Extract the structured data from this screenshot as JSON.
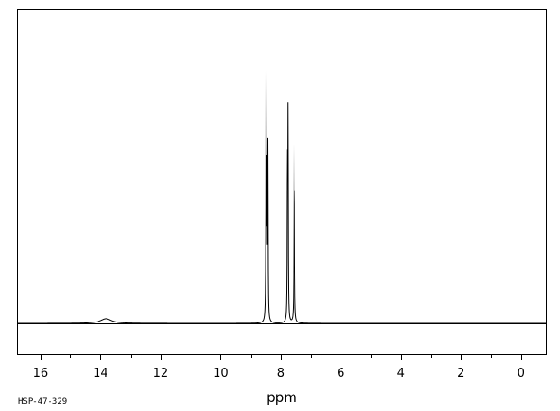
{
  "chart_data": {
    "type": "line",
    "xlabel": "ppm",
    "ylabel": "",
    "xlim": [
      16.75,
      -0.85
    ],
    "x_reversed": true,
    "ylim": [
      -0.18,
      1.0
    ],
    "grid": false,
    "x_ticks": [
      16,
      14,
      12,
      10,
      8,
      6,
      4,
      2,
      0
    ],
    "x_minor_step": 1,
    "baseline": 0,
    "sample_code": "HSP-47-329",
    "peaks": [
      {
        "ppm": 13.82,
        "height": 0.016,
        "width": 0.22
      },
      {
        "ppm": 8.49,
        "height": 0.87,
        "width": 0.008
      },
      {
        "ppm": 8.46,
        "height": 0.5,
        "width": 0.008
      },
      {
        "ppm": 8.43,
        "height": 0.61,
        "width": 0.008
      },
      {
        "ppm": 7.78,
        "height": 0.54,
        "width": 0.008
      },
      {
        "ppm": 7.76,
        "height": 0.72,
        "width": 0.008
      },
      {
        "ppm": 7.56,
        "height": 0.57,
        "width": 0.008
      },
      {
        "ppm": 7.54,
        "height": 0.43,
        "width": 0.008
      }
    ]
  }
}
